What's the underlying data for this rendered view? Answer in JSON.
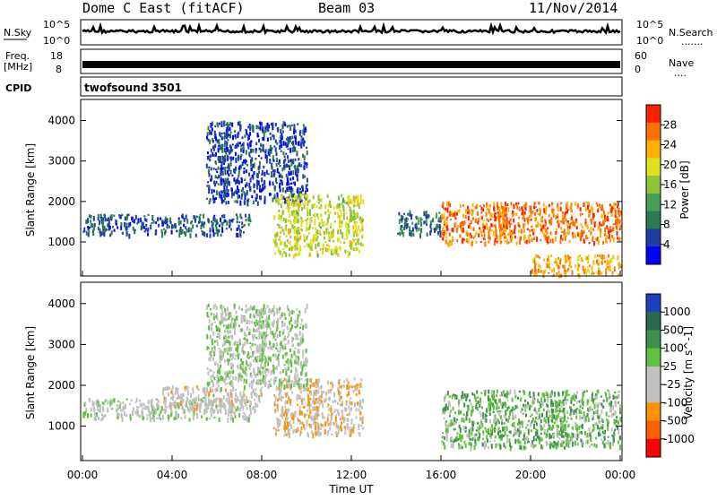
{
  "header": {
    "station": "Dome C East (fitACF)",
    "beam": "Beam 03",
    "date": "11/Nov/2014"
  },
  "panels": {
    "nsky_label": "N.Sky",
    "nsearch_label": "N.Search",
    "nsearch_dots": ".......",
    "freq_label": "Freq.",
    "freq_unit": "[MHz]",
    "nave_label": "Nave",
    "nave_dots": "....",
    "cpid_label": "CPID",
    "cpid_value": "twofsound 3501",
    "noise_left_ticks": [
      "10^5",
      "10^0"
    ],
    "noise_right_ticks": [
      "10^5",
      "10^0"
    ],
    "freq_left_ticks": [
      "18",
      "8"
    ],
    "freq_right_ticks": [
      "60",
      "0"
    ]
  },
  "colors": {
    "power": [
      "#0000ff",
      "#1f3fa6",
      "#2c7b4f",
      "#46a05a",
      "#8fc43a",
      "#e0e020",
      "#ffb000",
      "#ff7000",
      "#ff2000"
    ],
    "velocity": [
      "#2040c0",
      "#2a6a50",
      "#3f8f4f",
      "#60c040",
      "#c0c0c0",
      "#c0c0c0",
      "#ff9000",
      "#ff6000",
      "#ff0000"
    ]
  },
  "chart_data": [
    {
      "type": "heatmap",
      "title": "",
      "xlabel": "",
      "ylabel": "Slant Range [km]",
      "xlim": [
        "00:00",
        "24:00"
      ],
      "ylim": [
        180,
        4500
      ],
      "x_ticks": [
        "00:00",
        "04:00",
        "08:00",
        "12:00",
        "16:00",
        "20:00",
        "00:00"
      ],
      "y_ticks": [
        1000,
        2000,
        3000,
        4000
      ],
      "colorbar": {
        "label": "Power [dB]",
        "ticks": [
          "28",
          "24",
          "20",
          "16",
          "12",
          "8",
          "4"
        ],
        "range": [
          0,
          30
        ]
      },
      "regions": [
        {
          "t": [
            0,
            7.5
          ],
          "range": [
            1200,
            1700
          ],
          "value": 6
        },
        {
          "t": [
            5.5,
            10
          ],
          "range": [
            2000,
            4000
          ],
          "value": 5
        },
        {
          "t": [
            8.5,
            12.5
          ],
          "range": [
            700,
            2200
          ],
          "value": 17
        },
        {
          "t": [
            14,
            16
          ],
          "range": [
            1200,
            1800
          ],
          "value": 8
        },
        {
          "t": [
            16,
            24
          ],
          "range": [
            1000,
            2000
          ],
          "value": 25
        },
        {
          "t": [
            20,
            24
          ],
          "range": [
            200,
            700
          ],
          "value": 22
        }
      ]
    },
    {
      "type": "heatmap",
      "title": "",
      "xlabel": "Time UT",
      "ylabel": "Slant Range [km]",
      "xlim": [
        "00:00",
        "24:00"
      ],
      "ylim": [
        180,
        4500
      ],
      "x_ticks": [
        "00:00",
        "04:00",
        "08:00",
        "12:00",
        "16:00",
        "20:00",
        "00:00"
      ],
      "y_ticks": [
        1000,
        2000,
        3000,
        4000
      ],
      "colorbar": {
        "label": "Velocity [m s^-1]",
        "ticks": [
          "1000",
          "500",
          "100",
          "25",
          "-25",
          "-100",
          "-500",
          "-1000"
        ],
        "range": [
          -1200,
          1200
        ]
      },
      "regions": [
        {
          "t": [
            0,
            7.5
          ],
          "range": [
            1200,
            1700
          ],
          "value": 0
        },
        {
          "t": [
            3.5,
            8
          ],
          "range": [
            1400,
            2000
          ],
          "value": -150
        },
        {
          "t": [
            8.5,
            12.5
          ],
          "range": [
            800,
            2200
          ],
          "value": -300
        },
        {
          "t": [
            5.5,
            10
          ],
          "range": [
            2000,
            4000
          ],
          "value": 80
        },
        {
          "t": [
            16,
            24
          ],
          "range": [
            500,
            1900
          ],
          "value": 300
        }
      ]
    }
  ]
}
